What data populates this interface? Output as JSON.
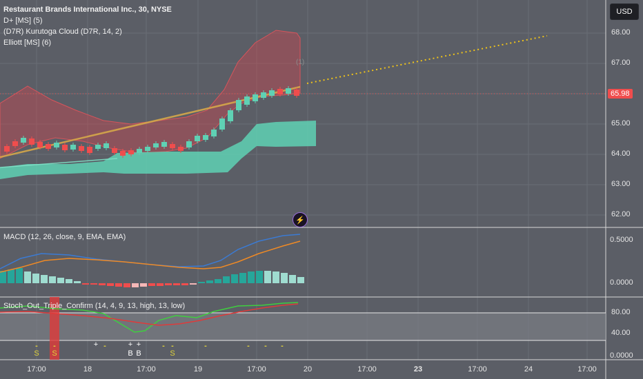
{
  "header": {
    "symbol_title": "Restaurant Brands International Inc., 30, NYSE",
    "indicators": [
      "D+ [MS] (5)",
      "(D7R) Kurutoga Cloud (D7R, 14, 2)",
      "Elliott [MS] (6)"
    ],
    "currency_button": "USD",
    "last_price": "65.98"
  },
  "main_axis": {
    "ticks": [
      "68.00",
      "67.00",
      "66.00",
      "65.00",
      "64.00",
      "63.00",
      "62.00"
    ]
  },
  "wave_label": "(1)",
  "macd": {
    "title": "MACD (12, 26, close, 9, EMA, EMA)",
    "ticks": [
      "0.5000",
      "0.0000"
    ]
  },
  "stoch": {
    "title": "Stoch_Out_Triple_Confirm (14, 4, 9, 13, high, 13, low)",
    "ticks": [
      "80.00",
      "40.00",
      "0.0000"
    ],
    "signals": [
      {
        "t": "-",
        "c": "#e0d23a"
      },
      {
        "t": "S",
        "c": "#e0d23a"
      },
      {
        "t": "-",
        "c": "#e0d23a"
      },
      {
        "t": "S",
        "c": "#e0d23a"
      },
      {
        "t": "+",
        "c": "#ffffff"
      },
      {
        "t": "-",
        "c": "#e0d23a"
      },
      {
        "t": "+",
        "c": "#ffffff"
      },
      {
        "t": "+",
        "c": "#ffffff"
      },
      {
        "t": "B",
        "c": "#ffffff"
      },
      {
        "t": "B",
        "c": "#ffffff"
      },
      {
        "t": "-",
        "c": "#e0d23a"
      },
      {
        "t": "-",
        "c": "#e0d23a"
      },
      {
        "t": "S",
        "c": "#e0d23a"
      },
      {
        "t": "-",
        "c": "#e0d23a"
      },
      {
        "t": "-",
        "c": "#e0d23a"
      },
      {
        "t": "-",
        "c": "#e0d23a"
      },
      {
        "t": "-",
        "c": "#e0d23a"
      }
    ]
  },
  "time_axis": {
    "ticks": [
      {
        "label": "17:00",
        "bold": false
      },
      {
        "label": "18",
        "bold": false
      },
      {
        "label": "17:00",
        "bold": false
      },
      {
        "label": "19",
        "bold": false
      },
      {
        "label": "17:00",
        "bold": false
      },
      {
        "label": "20",
        "bold": false
      },
      {
        "label": "17:00",
        "bold": false
      },
      {
        "label": "23",
        "bold": true
      },
      {
        "label": "17:00",
        "bold": false
      },
      {
        "label": "24",
        "bold": false
      },
      {
        "label": "17:00",
        "bold": false
      }
    ]
  },
  "colors": {
    "background": "#5b5e66",
    "cloud_top": "#c6484f",
    "cloud_bottom": "#5fd1b4",
    "up_candle": "#5fd1b4",
    "down_candle": "#f04d4d",
    "trend": "#d6a84a",
    "projection": "#f0c419",
    "macd_line": "#3b7bd4",
    "signal_line": "#f08a24",
    "stoch_green": "#3fcf3f",
    "stoch_red": "#e03a3a"
  }
}
